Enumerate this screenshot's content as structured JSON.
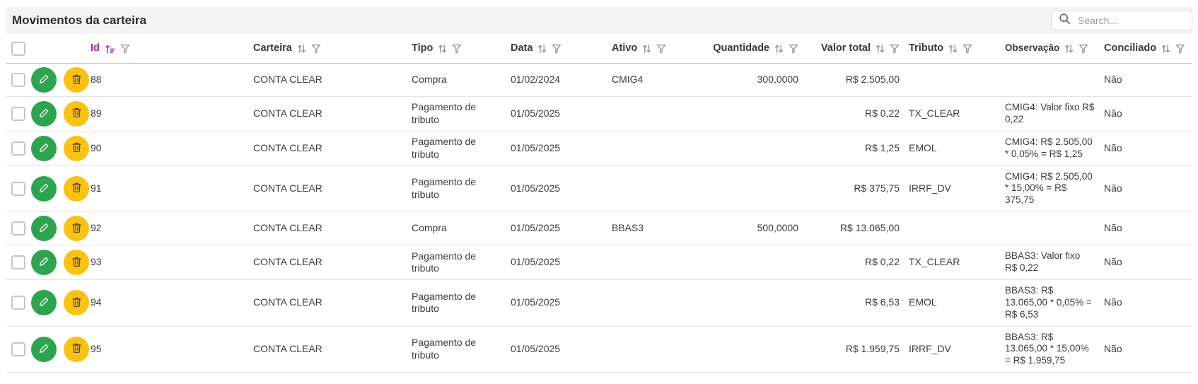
{
  "title": "Movimentos da carteira",
  "search": {
    "placeholder": "Search..."
  },
  "colors": {
    "edit_button": "#2da44e",
    "delete_button": "#fcc211",
    "sorted_column": "#9c27b0",
    "titlebar_bg": "#f4f4f4"
  },
  "icons": {
    "search": "magnifier-glyph",
    "pencil": "white-outline-pencil",
    "trash": "dark-outline-trash-can",
    "sort_ascending": "purple-arrow-up-with-bars",
    "sort_updown": "gray-up-down-arrows",
    "filter": "gray-funnel-outline"
  },
  "table": {
    "columns": [
      {
        "key": "id",
        "label": "Id",
        "sorted": true,
        "has_sort": true,
        "has_filter": true
      },
      {
        "key": "carteira",
        "label": "Carteira",
        "sorted": false,
        "has_sort": true,
        "has_filter": true
      },
      {
        "key": "tipo",
        "label": "Tipo",
        "sorted": false,
        "has_sort": true,
        "has_filter": true
      },
      {
        "key": "data",
        "label": "Data",
        "sorted": false,
        "has_sort": true,
        "has_filter": true
      },
      {
        "key": "ativo",
        "label": "Ativo",
        "sorted": false,
        "has_sort": true,
        "has_filter": true
      },
      {
        "key": "quantidade",
        "label": "Quantidade",
        "sorted": false,
        "has_sort": true,
        "has_filter": true,
        "align": "right"
      },
      {
        "key": "valor_total",
        "label": "Valor total",
        "sorted": false,
        "has_sort": true,
        "has_filter": true,
        "align": "right"
      },
      {
        "key": "tributo",
        "label": "Tributo",
        "sorted": false,
        "has_sort": true,
        "has_filter": true
      },
      {
        "key": "observacao",
        "label": "Observação",
        "sorted": false,
        "has_sort": true,
        "has_filter": true
      },
      {
        "key": "conciliado",
        "label": "Conciliado",
        "sorted": false,
        "has_sort": true,
        "has_filter": true
      }
    ],
    "rows": [
      {
        "id": "88",
        "carteira": "CONTA CLEAR",
        "tipo": "Compra",
        "data": "01/02/2024",
        "ativo": "CMIG4",
        "quantidade": "300,0000",
        "valor_total": "R$ 2.505,00",
        "tributo": "",
        "observacao": "",
        "conciliado": "Não"
      },
      {
        "id": "89",
        "carteira": "CONTA CLEAR",
        "tipo": "Pagamento de tributo",
        "data": "01/05/2025",
        "ativo": "",
        "quantidade": "",
        "valor_total": "R$ 0,22",
        "tributo": "TX_CLEAR",
        "observacao": "CMIG4: Valor fixo R$ 0,22",
        "conciliado": "Não"
      },
      {
        "id": "90",
        "carteira": "CONTA CLEAR",
        "tipo": "Pagamento de tributo",
        "data": "01/05/2025",
        "ativo": "",
        "quantidade": "",
        "valor_total": "R$ 1,25",
        "tributo": "EMOL",
        "observacao": "CMIG4: R$ 2.505,00 * 0,05% = R$ 1,25",
        "conciliado": "Não"
      },
      {
        "id": "91",
        "carteira": "CONTA CLEAR",
        "tipo": "Pagamento de tributo",
        "data": "01/05/2025",
        "ativo": "",
        "quantidade": "",
        "valor_total": "R$ 375,75",
        "tributo": "IRRF_DV",
        "observacao": "CMIG4: R$ 2.505,00 * 15,00% = R$ 375,75",
        "conciliado": "Não"
      },
      {
        "id": "92",
        "carteira": "CONTA CLEAR",
        "tipo": "Compra",
        "data": "01/05/2025",
        "ativo": "BBAS3",
        "quantidade": "500,0000",
        "valor_total": "R$ 13.065,00",
        "tributo": "",
        "observacao": "",
        "conciliado": "Não"
      },
      {
        "id": "93",
        "carteira": "CONTA CLEAR",
        "tipo": "Pagamento de tributo",
        "data": "01/05/2025",
        "ativo": "",
        "quantidade": "",
        "valor_total": "R$ 0,22",
        "tributo": "TX_CLEAR",
        "observacao": "BBAS3: Valor fixo R$ 0,22",
        "conciliado": "Não"
      },
      {
        "id": "94",
        "carteira": "CONTA CLEAR",
        "tipo": "Pagamento de tributo",
        "data": "01/05/2025",
        "ativo": "",
        "quantidade": "",
        "valor_total": "R$ 6,53",
        "tributo": "EMOL",
        "observacao": "BBAS3: R$ 13.065,00 * 0,05% = R$ 6,53",
        "conciliado": "Não"
      },
      {
        "id": "95",
        "carteira": "CONTA CLEAR",
        "tipo": "Pagamento de tributo",
        "data": "01/05/2025",
        "ativo": "",
        "quantidade": "",
        "valor_total": "R$ 1.959,75",
        "tributo": "IRRF_DV",
        "observacao": "BBAS3: R$ 13.065,00 * 15,00% = R$ 1.959,75",
        "conciliado": "Não"
      }
    ]
  }
}
